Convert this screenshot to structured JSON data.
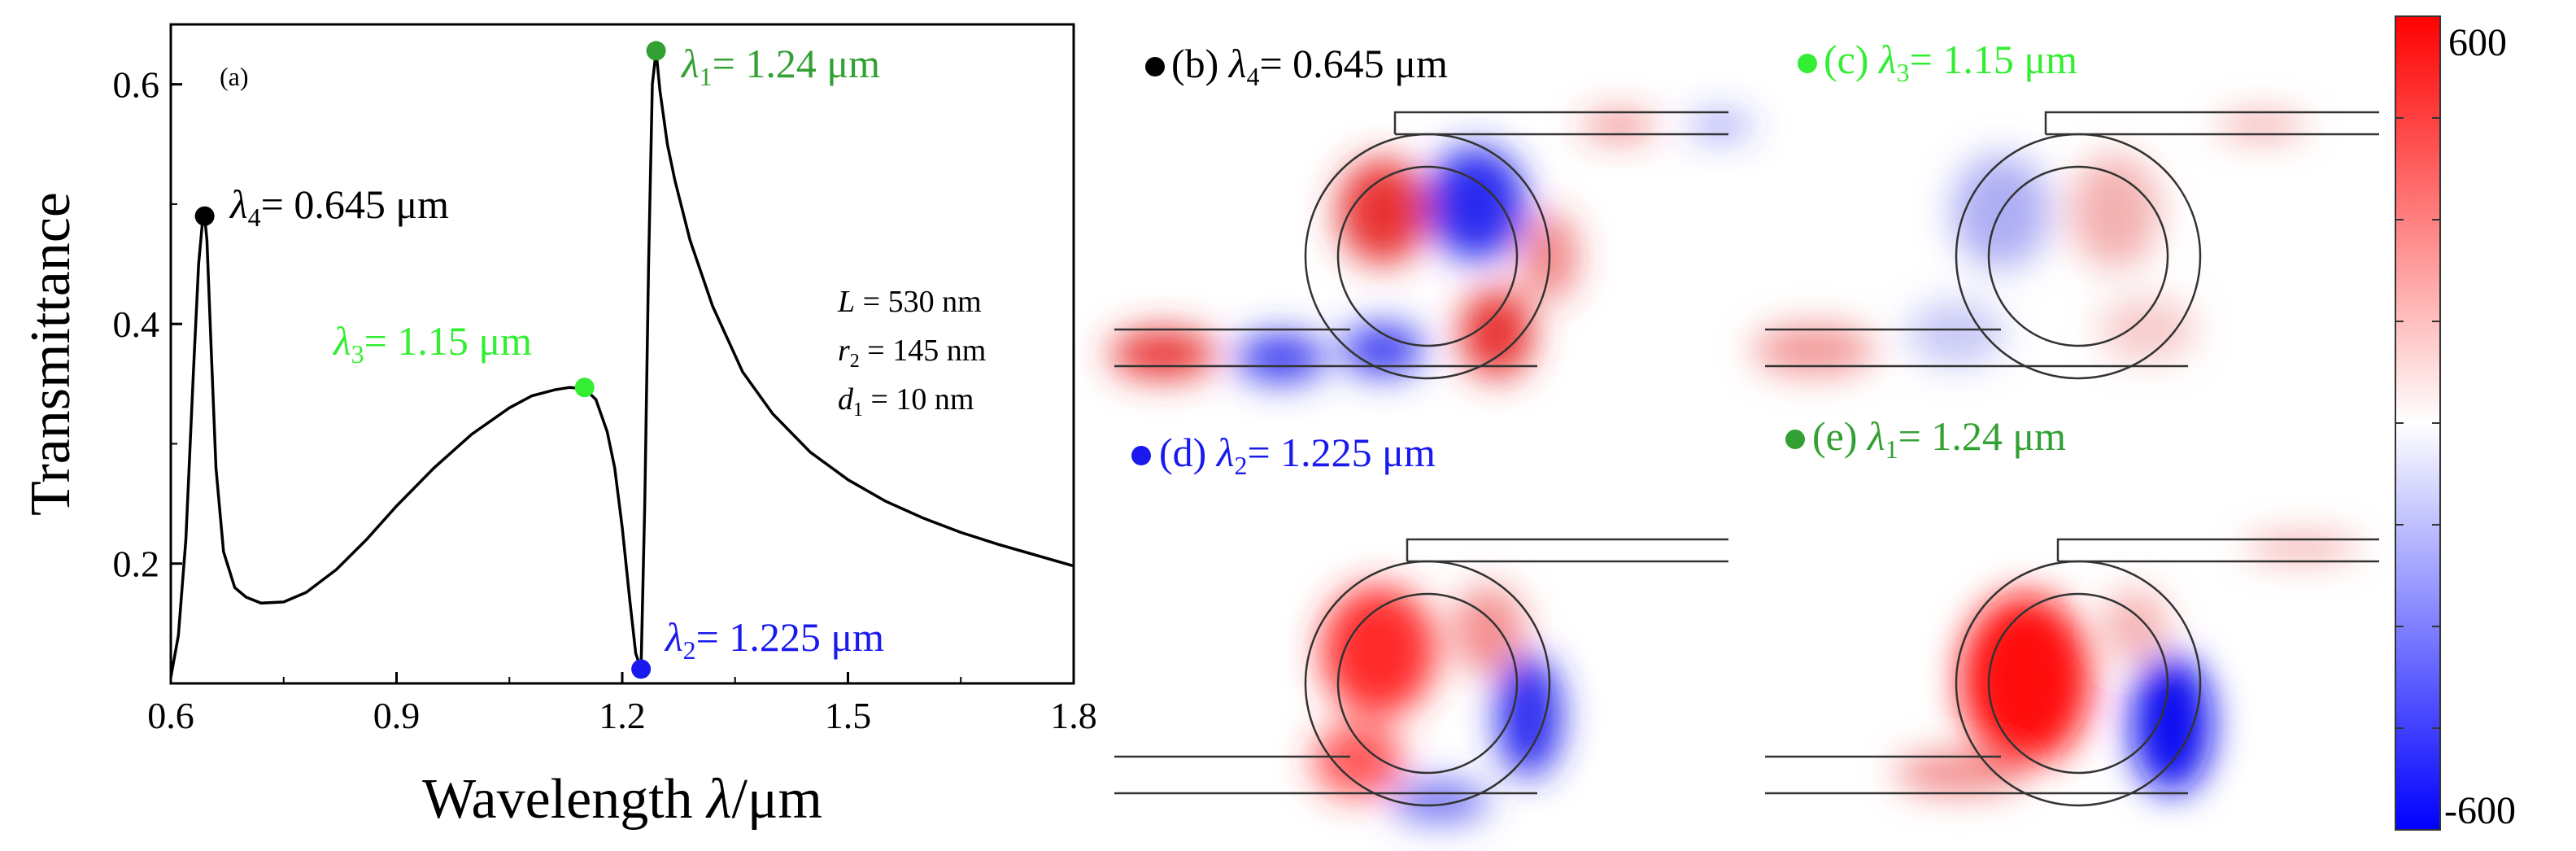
{
  "chart_data": {
    "type": "line",
    "panel_label": "(a)",
    "xlabel_main": "Wavelength ",
    "xlabel_symbol": "λ",
    "xlabel_unit": "/μm",
    "ylabel": "Transmittance",
    "xlim": [
      0.6,
      1.8
    ],
    "ylim": [
      0.1,
      0.65
    ],
    "xticks": [
      0.6,
      0.9,
      1.2,
      1.5,
      1.8
    ],
    "xtick_labels": [
      "0.6",
      "0.9",
      "1.2",
      "1.5",
      "1.8"
    ],
    "yticks": [
      0.2,
      0.4,
      0.6
    ],
    "ytick_labels": [
      "0.2",
      "0.4",
      "0.6"
    ],
    "series": [
      {
        "color": "#000000",
        "x": [
          0.6,
          0.61,
          0.62,
          0.63,
          0.637,
          0.642,
          0.645,
          0.648,
          0.653,
          0.66,
          0.67,
          0.685,
          0.7,
          0.72,
          0.75,
          0.78,
          0.82,
          0.86,
          0.9,
          0.95,
          1.0,
          1.05,
          1.08,
          1.11,
          1.13,
          1.15,
          1.165,
          1.18,
          1.19,
          1.2,
          1.21,
          1.218,
          1.225,
          1.23,
          1.235,
          1.24,
          1.245,
          1.25,
          1.26,
          1.27,
          1.29,
          1.32,
          1.36,
          1.4,
          1.45,
          1.5,
          1.55,
          1.6,
          1.65,
          1.7,
          1.75,
          1.8
        ],
        "y": [
          0.105,
          0.14,
          0.22,
          0.36,
          0.45,
          0.485,
          0.49,
          0.47,
          0.39,
          0.28,
          0.21,
          0.18,
          0.172,
          0.167,
          0.168,
          0.176,
          0.195,
          0.22,
          0.248,
          0.28,
          0.308,
          0.33,
          0.34,
          0.345,
          0.347,
          0.346,
          0.337,
          0.31,
          0.28,
          0.23,
          0.17,
          0.125,
          0.112,
          0.25,
          0.45,
          0.6,
          0.628,
          0.595,
          0.55,
          0.52,
          0.47,
          0.415,
          0.36,
          0.325,
          0.293,
          0.27,
          0.252,
          0.238,
          0.226,
          0.216,
          0.207,
          0.198
        ]
      }
    ],
    "markers": [
      {
        "x": 0.645,
        "y": 0.49,
        "color": "#000000"
      },
      {
        "x": 1.15,
        "y": 0.347,
        "color": "#33ee33"
      },
      {
        "x": 1.225,
        "y": 0.112,
        "color": "#1a1aee"
      },
      {
        "x": 1.245,
        "y": 0.628,
        "color": "#33a033"
      }
    ],
    "annotations": [
      {
        "symbol": "λ",
        "sub": "4",
        "rest": "= 0.645 μm",
        "color": "#000000"
      },
      {
        "symbol": "λ",
        "sub": "3",
        "rest": "= 1.15 μm",
        "color": "#33ee33"
      },
      {
        "symbol": "λ",
        "sub": "2",
        "rest": "= 1.225 μm",
        "color": "#1a1aee"
      },
      {
        "symbol": "λ",
        "sub": "1",
        "rest": "= 1.24 μm",
        "color": "#33a033"
      }
    ],
    "params": [
      {
        "symbol": "L",
        "sub": "",
        "rest": " = 530 nm"
      },
      {
        "symbol": "r",
        "sub": "2",
        "rest": " = 145 nm"
      },
      {
        "symbol": "d",
        "sub": "1",
        "rest": " = 10 nm"
      }
    ],
    "grid": false,
    "legend": "none"
  },
  "field_panels": [
    {
      "label": "(b)",
      "symbol": "λ",
      "sub": "4",
      "rest": "= 0.645 μm",
      "dot_color": "#000000",
      "text_color": "#000000"
    },
    {
      "label": "(c)",
      "symbol": "λ",
      "sub": "3",
      "rest": "= 1.15 μm",
      "dot_color": "#33ee33",
      "text_color": "#33ee33"
    },
    {
      "label": "(d)",
      "symbol": "λ",
      "sub": "2",
      "rest": "= 1.225 μm",
      "dot_color": "#1a1aee",
      "text_color": "#1a1aee"
    },
    {
      "label": "(e)",
      "symbol": "λ",
      "sub": "1",
      "rest": "= 1.24 μm",
      "dot_color": "#33a033",
      "text_color": "#33a033"
    }
  ],
  "colorbar": {
    "max_label": "600",
    "min_label": "-600",
    "range": [
      -600,
      600
    ],
    "colors": [
      "#0000ff",
      "#ffffff",
      "#ff0000"
    ]
  }
}
